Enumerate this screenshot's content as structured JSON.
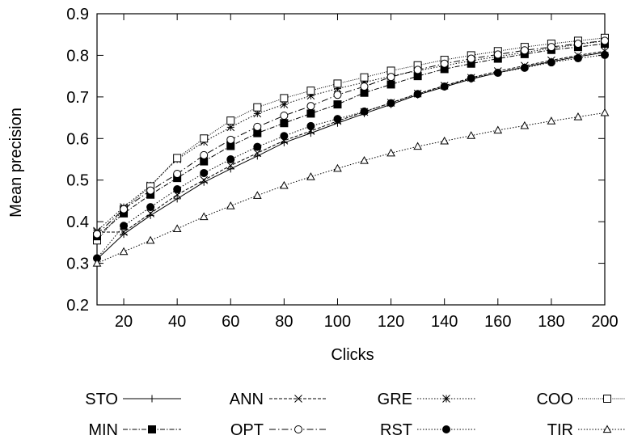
{
  "chart_data": {
    "type": "line",
    "xlabel": "Clicks",
    "ylabel": "Mean precision",
    "xlim": [
      10,
      200
    ],
    "ylim": [
      0.2,
      0.9
    ],
    "xticks": [
      "20",
      "40",
      "60",
      "80",
      "100",
      "120",
      "140",
      "160",
      "180",
      "200"
    ],
    "yticks": [
      "0.2",
      "0.3",
      "0.4",
      "0.5",
      "0.6",
      "0.7",
      "0.8",
      "0.9"
    ],
    "grid": false,
    "legend_position": "bottom",
    "x": [
      10,
      20,
      30,
      40,
      50,
      60,
      70,
      80,
      90,
      100,
      110,
      120,
      130,
      140,
      150,
      160,
      170,
      180,
      190,
      200
    ],
    "series": [
      {
        "name": "STO",
        "marker": "plus",
        "dash": "solid",
        "filled": false,
        "values": [
          0.31,
          0.37,
          0.415,
          0.455,
          0.495,
          0.527,
          0.558,
          0.59,
          0.613,
          0.637,
          0.66,
          0.682,
          0.705,
          0.724,
          0.743,
          0.758,
          0.772,
          0.785,
          0.797,
          0.807
        ]
      },
      {
        "name": "ANN",
        "marker": "cross",
        "dash": "dashed",
        "filled": false,
        "values": [
          0.375,
          0.375,
          0.42,
          0.465,
          0.5,
          0.535,
          0.565,
          0.595,
          0.618,
          0.642,
          0.664,
          0.686,
          0.708,
          0.727,
          0.746,
          0.762,
          0.775,
          0.788,
          0.8,
          0.81
        ]
      },
      {
        "name": "GRE",
        "marker": "asterisk",
        "dash": "dotted",
        "filled": false,
        "values": [
          0.378,
          0.435,
          0.487,
          0.55,
          0.592,
          0.627,
          0.66,
          0.682,
          0.703,
          0.72,
          0.735,
          0.75,
          0.763,
          0.775,
          0.787,
          0.797,
          0.807,
          0.817,
          0.826,
          0.835
        ]
      },
      {
        "name": "COO",
        "marker": "square",
        "dash": "dotted-fine",
        "filled": false,
        "values": [
          0.355,
          0.43,
          0.485,
          0.553,
          0.6,
          0.643,
          0.675,
          0.697,
          0.715,
          0.732,
          0.747,
          0.763,
          0.776,
          0.789,
          0.8,
          0.81,
          0.82,
          0.828,
          0.835,
          0.842
        ]
      },
      {
        "name": "MIN",
        "marker": "square",
        "dash": "dashdot",
        "filled": true,
        "values": [
          0.365,
          0.42,
          0.465,
          0.505,
          0.545,
          0.582,
          0.613,
          0.637,
          0.66,
          0.682,
          0.71,
          0.73,
          0.75,
          0.767,
          0.78,
          0.792,
          0.803,
          0.813,
          0.82,
          0.828
        ]
      },
      {
        "name": "OPT",
        "marker": "circle",
        "dash": "dashdot-long",
        "filled": false,
        "values": [
          0.37,
          0.43,
          0.475,
          0.515,
          0.56,
          0.597,
          0.628,
          0.655,
          0.678,
          0.705,
          0.725,
          0.748,
          0.765,
          0.78,
          0.792,
          0.802,
          0.812,
          0.82,
          0.828,
          0.835
        ]
      },
      {
        "name": "RST",
        "marker": "circle",
        "dash": "dotted",
        "filled": true,
        "values": [
          0.312,
          0.39,
          0.435,
          0.478,
          0.517,
          0.55,
          0.58,
          0.606,
          0.63,
          0.647,
          0.665,
          0.685,
          0.707,
          0.725,
          0.745,
          0.758,
          0.77,
          0.783,
          0.793,
          0.801
        ]
      },
      {
        "name": "TIR",
        "marker": "triangle",
        "dash": "dotted",
        "filled": false,
        "values": [
          0.3,
          0.328,
          0.355,
          0.383,
          0.412,
          0.438,
          0.463,
          0.487,
          0.508,
          0.528,
          0.547,
          0.565,
          0.581,
          0.594,
          0.607,
          0.62,
          0.631,
          0.642,
          0.652,
          0.662
        ]
      }
    ]
  }
}
